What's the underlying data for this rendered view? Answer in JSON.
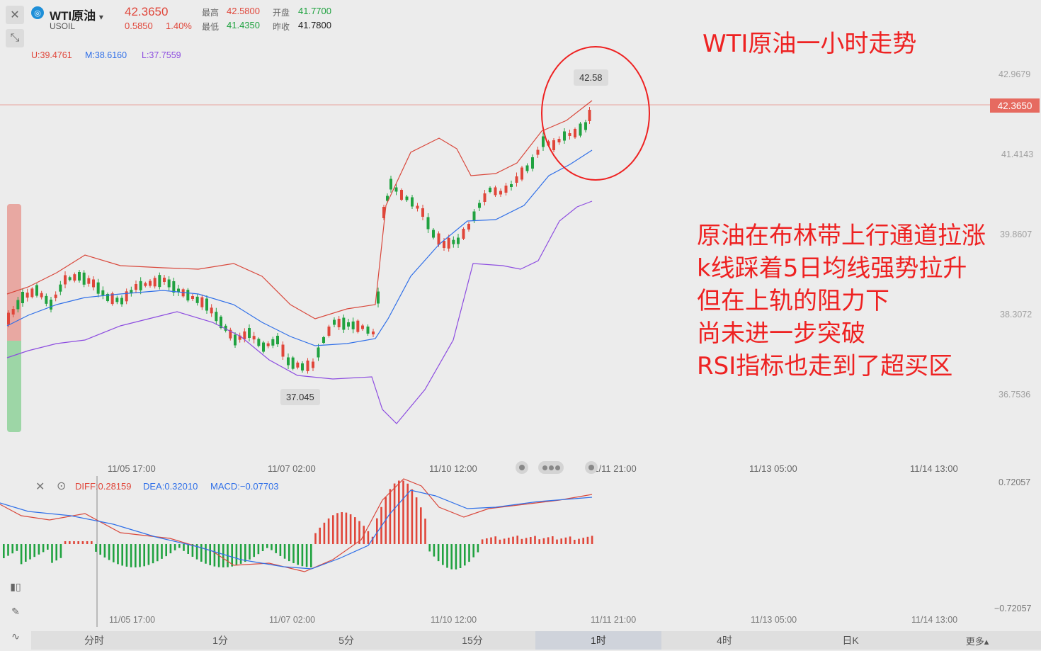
{
  "header": {
    "close_icon": "close-icon",
    "collapse_icon": "collapse-icon",
    "symbol_name": "WTI原油",
    "symbol_code": "USOIL",
    "dropdown_arrow": "▾",
    "price": "42.3650",
    "change": "0.5850",
    "change_pct": "1.40%",
    "high_label": "最高",
    "high_value": "42.5800",
    "low_label": "最低",
    "low_value": "41.4350",
    "open_label": "开盘",
    "open_value": "41.7700",
    "prev_close_label": "昨收",
    "prev_close_value": "41.7800"
  },
  "boll": {
    "upper": "U:39.4761",
    "mid": "M:38.6160",
    "lower": "L:37.7559"
  },
  "price_axis": [
    "42.9679",
    "41.4143",
    "39.8607",
    "38.3072",
    "36.7536"
  ],
  "current_price_tag": "42.3650",
  "high_marker": "42.58",
  "low_marker": "37.045",
  "time_axis": [
    "11/05 17:00",
    "11/07 02:00",
    "11/10 12:00",
    "11/11 21:00",
    "11/13 05:00",
    "11/14 13:00"
  ],
  "macd": {
    "diff": "DIFF:0.28159",
    "dea": "DEA:0.32010",
    "macd": "MACD:−0.07703",
    "axis_top": "0.72057",
    "axis_bottom": "−0.72057"
  },
  "annotation": {
    "title": "WTI原油一小时走势",
    "lines": [
      "原油在布林带上行通道拉涨",
      "k线踩着5日均线强势拉升",
      "但在上轨的阻力下",
      "尚未进一步突破",
      "RSI指标也走到了超买区"
    ]
  },
  "tabs": [
    "分时",
    "1分",
    "5分",
    "15分",
    "1时",
    "4时",
    "日K",
    "更多▴"
  ],
  "active_tab": "1时",
  "colors": {
    "up": "#e0463a",
    "down": "#20a240",
    "mid": "#2f6fe8",
    "lower": "#8d4de0",
    "annotation": "#ee2222"
  }
}
